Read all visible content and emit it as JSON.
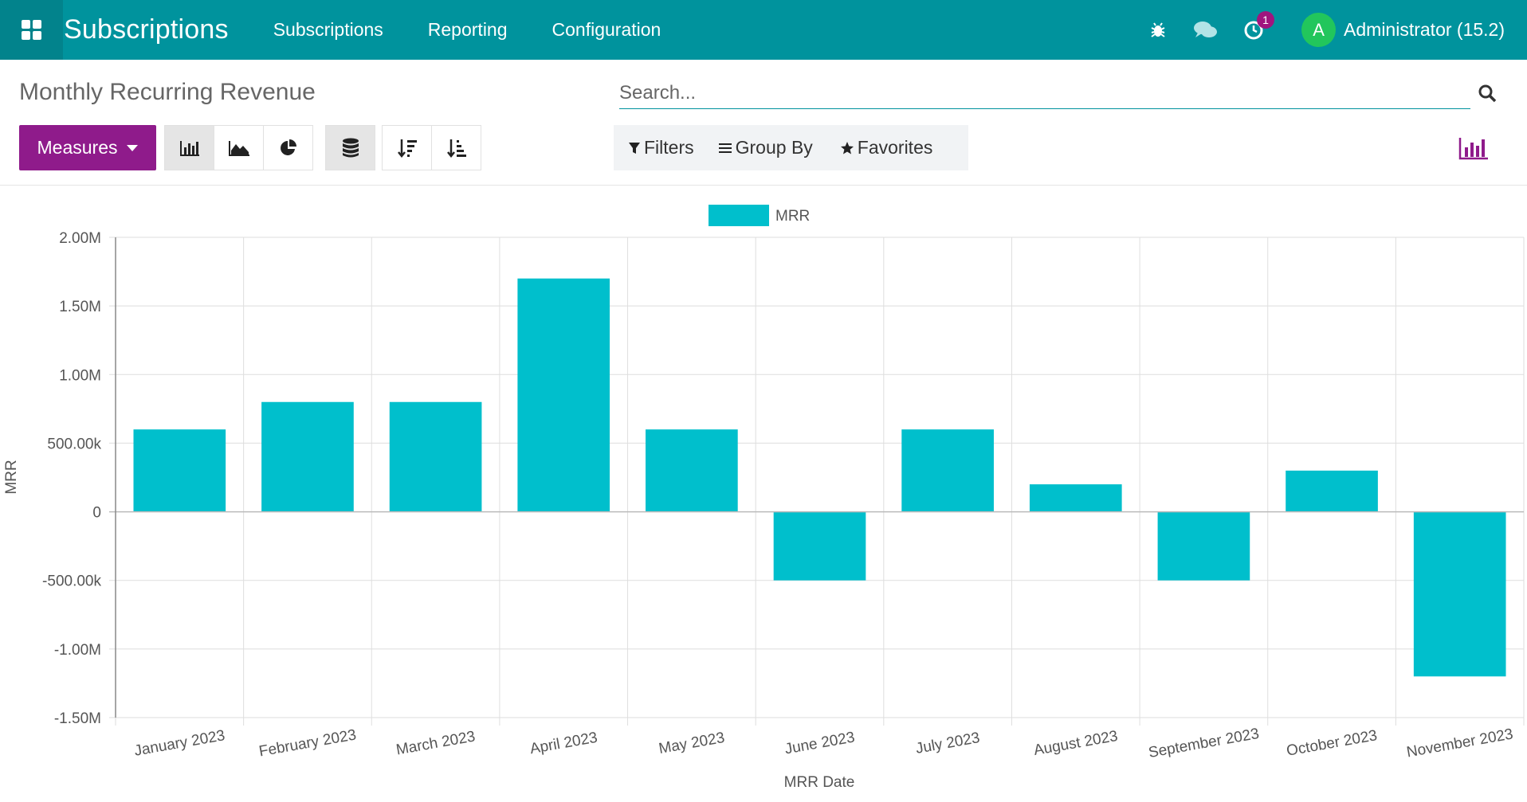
{
  "navbar": {
    "app_title": "Subscriptions",
    "menus": [
      "Subscriptions",
      "Reporting",
      "Configuration"
    ],
    "activity_badge": "1",
    "user_initial": "A",
    "user_name": "Administrator (15.2)",
    "icons": [
      "apps-grid-icon",
      "bug-icon",
      "chat-icon",
      "clock-icon"
    ]
  },
  "control_panel": {
    "title": "Monthly Recurring Revenue",
    "measures_label": "Measures",
    "search_placeholder": "Search...",
    "filters_label": "Filters",
    "group_by_label": "Group By",
    "favorites_label": "Favorites"
  },
  "colors": {
    "navbar": "#00939d",
    "accent": "#8f1b8b",
    "bar": "#00bfcc"
  },
  "chart_data": {
    "type": "bar",
    "legend": [
      "MRR"
    ],
    "xlabel": "MRR Date",
    "ylabel": "MRR",
    "ylim": [
      -1500000,
      2000000
    ],
    "yticks": [
      "2.00M",
      "1.50M",
      "1.00M",
      "500.00k",
      "0",
      "-500.00k",
      "-1.00M",
      "-1.50M"
    ],
    "categories": [
      "January 2023",
      "February 2023",
      "March 2023",
      "April 2023",
      "May 2023",
      "June 2023",
      "July 2023",
      "August 2023",
      "September 2023",
      "October 2023",
      "November 2023"
    ],
    "series": [
      {
        "name": "MRR",
        "values": [
          600000,
          800000,
          800000,
          1700000,
          600000,
          -500000,
          600000,
          200000,
          -500000,
          300000,
          -1200000
        ]
      }
    ]
  }
}
